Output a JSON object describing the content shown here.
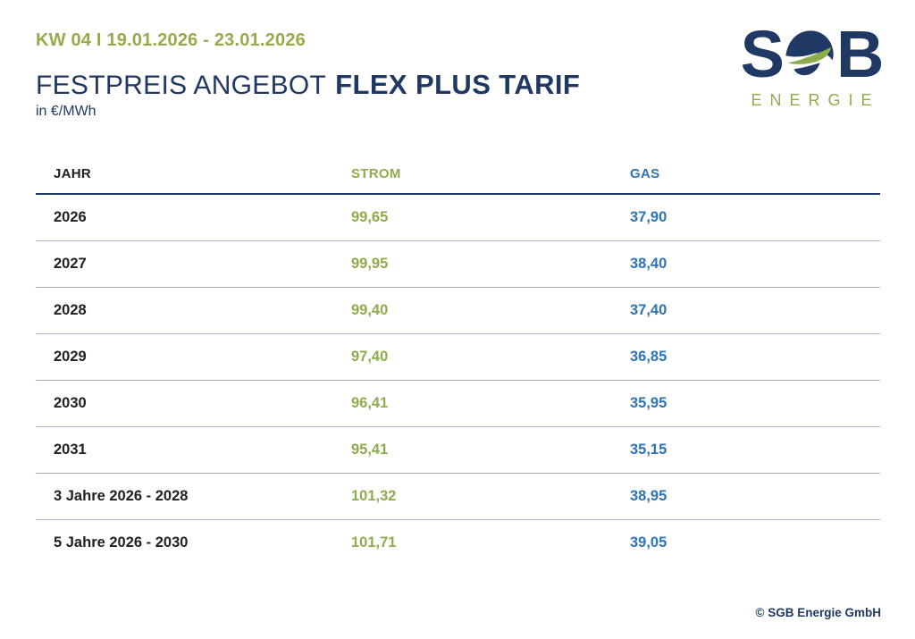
{
  "header": {
    "week_range": "KW 04 I 19.01.2026 - 23.01.2026",
    "title_regular": "FESTPREIS ANGEBOT",
    "title_bold": "FLEX PLUS TARIF",
    "unit": "in €/MWh"
  },
  "logo": {
    "letter_s": "S",
    "letter_b": "B",
    "subtitle": "ENERGIE"
  },
  "table": {
    "columns": [
      {
        "key": "jahr",
        "label": "JAHR"
      },
      {
        "key": "strom",
        "label": "STROM"
      },
      {
        "key": "gas",
        "label": "GAS"
      }
    ],
    "rows": [
      {
        "jahr": "2026",
        "strom": "99,65",
        "gas": "37,90"
      },
      {
        "jahr": "2027",
        "strom": "99,95",
        "gas": "38,40"
      },
      {
        "jahr": "2028",
        "strom": "99,40",
        "gas": "37,40"
      },
      {
        "jahr": "2029",
        "strom": "97,40",
        "gas": "36,85"
      },
      {
        "jahr": "2030",
        "strom": "96,41",
        "gas": "35,95"
      },
      {
        "jahr": "2031",
        "strom": "95,41",
        "gas": "35,15"
      },
      {
        "jahr": "3 Jahre 2026 - 2028",
        "strom": "101,32",
        "gas": "38,95"
      },
      {
        "jahr": "5 Jahre 2026 - 2030",
        "strom": "101,71",
        "gas": "39,05"
      }
    ]
  },
  "footer": {
    "copyright": "© SGB Energie GmbH"
  },
  "colors": {
    "navy": "#1F3864",
    "green": "#8FAC4C",
    "blue": "#2E74B5",
    "row_label": "#212121",
    "divider": "#A9B8C4"
  }
}
